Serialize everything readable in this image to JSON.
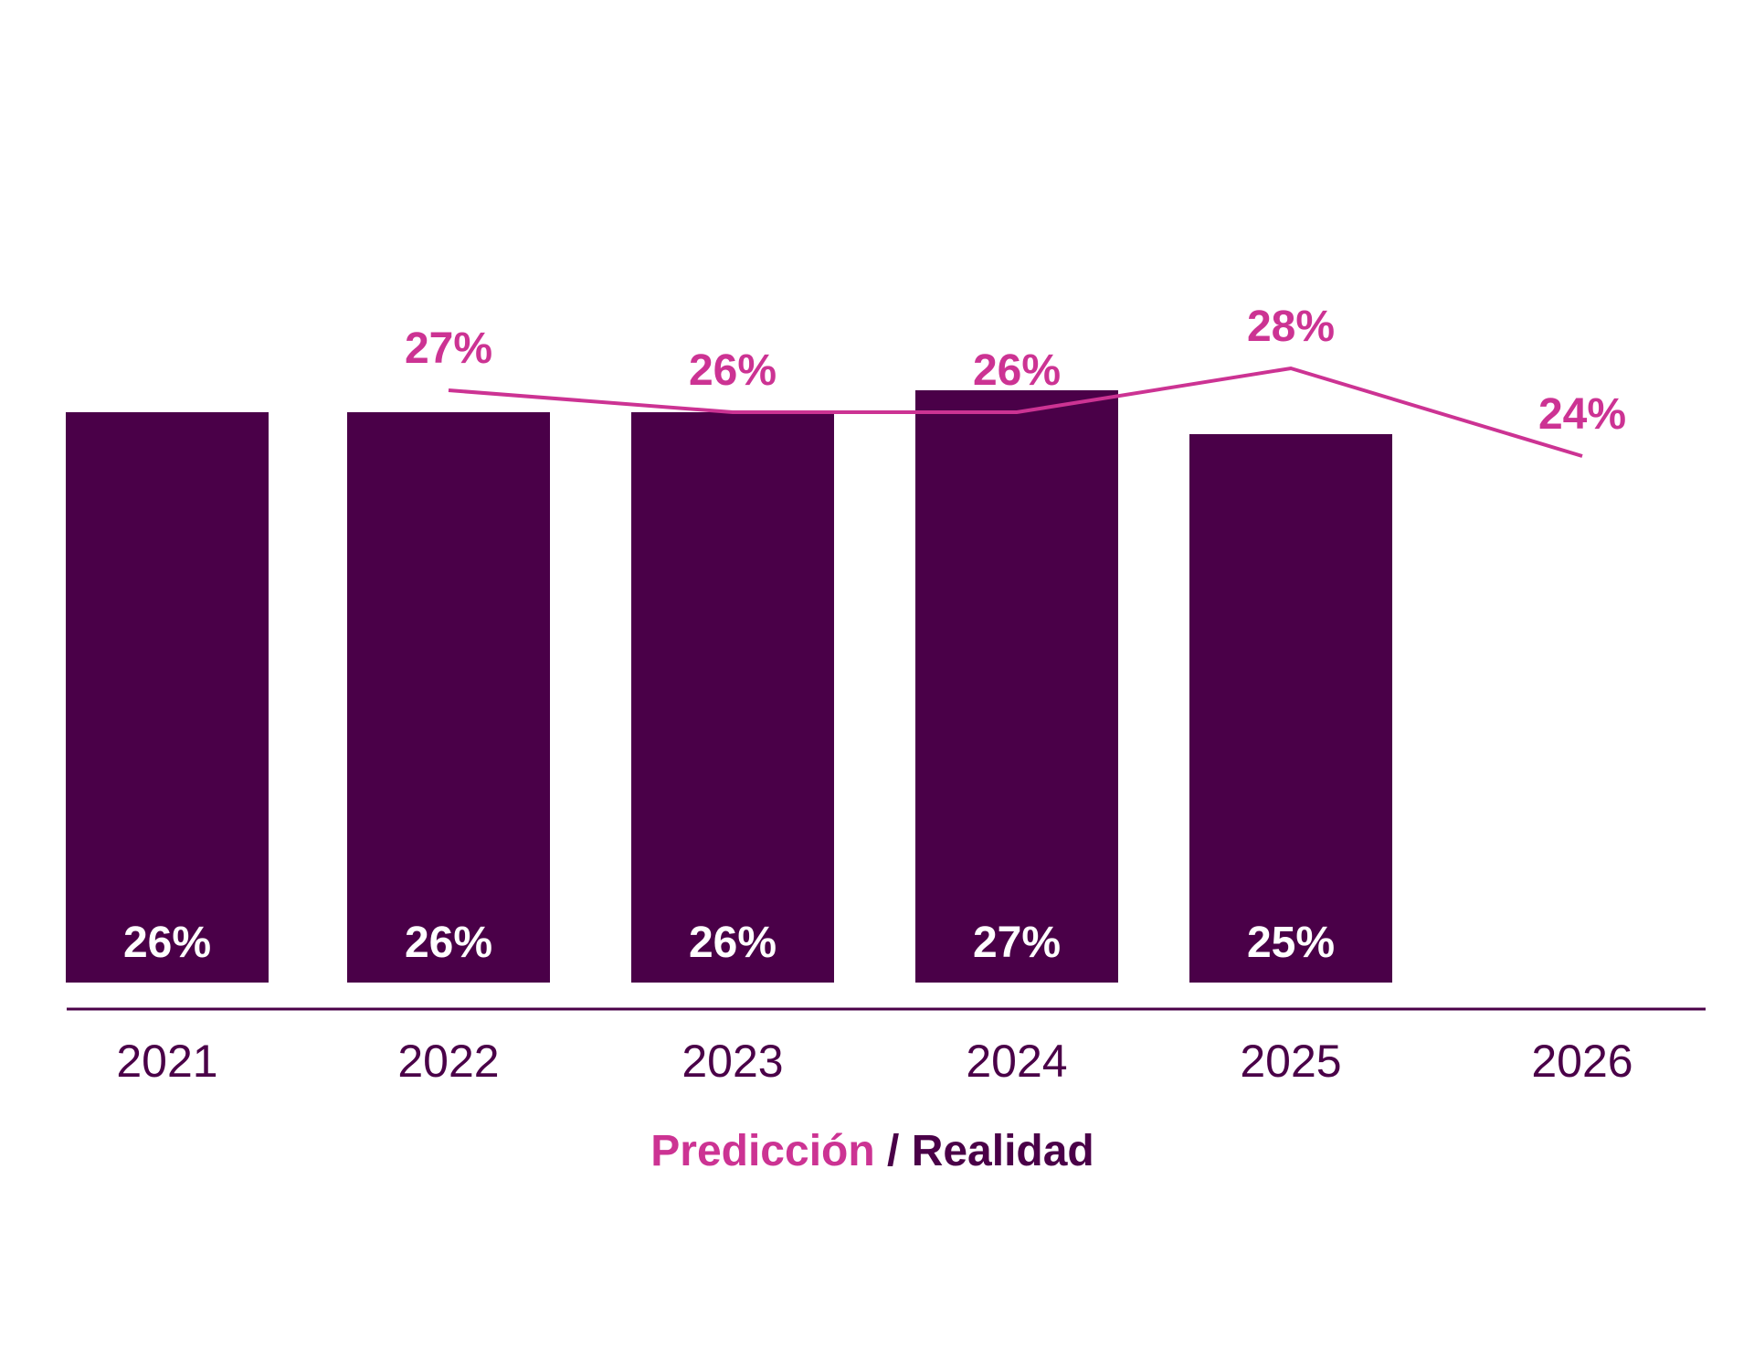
{
  "chart_data": {
    "type": "bar",
    "categories": [
      "2021",
      "2022",
      "2023",
      "2024",
      "2025",
      "2026"
    ],
    "series": [
      {
        "name": "Realidad",
        "kind": "bar",
        "values": [
          26,
          26,
          26,
          27,
          25,
          null
        ],
        "labels": [
          "26%",
          "26%",
          "26%",
          "27%",
          "25%",
          ""
        ]
      },
      {
        "name": "Predicción",
        "kind": "line",
        "values": [
          null,
          27,
          26,
          26,
          28,
          24
        ],
        "labels": [
          "",
          "27%",
          "26%",
          "26%",
          "28%",
          "24%"
        ]
      }
    ],
    "legend": {
      "predicted": "Predicción",
      "separator": " / ",
      "actual": "Realidad",
      "placement": "bottom"
    },
    "ylim": [
      0,
      30
    ],
    "grid": false,
    "colors": {
      "bar": "#4a0048",
      "line": "#cc3393",
      "axis": "#4a0048"
    }
  }
}
